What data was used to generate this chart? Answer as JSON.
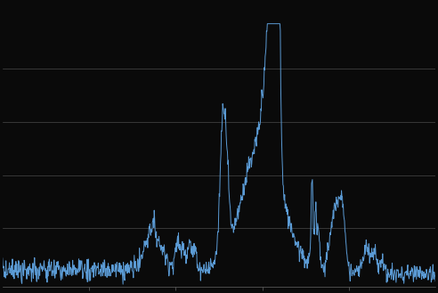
{
  "background_color": "#0a0a0a",
  "plot_bg_color": "#0a0a0a",
  "line_color": "#5b9bd5",
  "line_width": 0.7,
  "grid_color": "#4a4a4a",
  "grid_linewidth": 0.5,
  "xlim": [
    0,
    1000
  ],
  "ylim": [
    -0.02,
    1.05
  ],
  "figsize": [
    4.92,
    3.29
  ],
  "dpi": 100,
  "spine_color": "#666666",
  "tick_color": "#666666",
  "n_points": 1000,
  "seed": 7,
  "baseline_noise": 0.018,
  "baseline_level": 0.05
}
